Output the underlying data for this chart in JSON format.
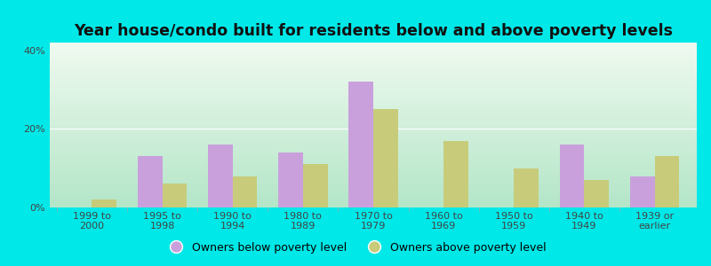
{
  "categories": [
    "1999 to\n2000",
    "1995 to\n1998",
    "1990 to\n1994",
    "1980 to\n1989",
    "1970 to\n1979",
    "1960 to\n1969",
    "1950 to\n1959",
    "1940 to\n1949",
    "1939 or\nearlier"
  ],
  "below_poverty": [
    0.0,
    13.0,
    16.0,
    14.0,
    32.0,
    0.0,
    0.0,
    16.0,
    8.0
  ],
  "above_poverty": [
    2.0,
    6.0,
    8.0,
    11.0,
    25.0,
    17.0,
    10.0,
    7.0,
    13.0
  ],
  "below_color": "#c9a0dc",
  "above_color": "#c8cc7a",
  "title": "Year house/condo built for residents below and above poverty levels",
  "ylabel_ticks": [
    "0%",
    "20%",
    "40%"
  ],
  "yticks": [
    0,
    20,
    40
  ],
  "ylim": [
    0,
    42
  ],
  "background_outer": "#00e8e8",
  "background_inner_top": "#f0faf0",
  "background_inner_bottom": "#b8ecd8",
  "legend_below": "Owners below poverty level",
  "legend_above": "Owners above poverty level",
  "bar_width": 0.35,
  "title_fontsize": 12.5,
  "tick_fontsize": 8,
  "legend_fontsize": 9
}
